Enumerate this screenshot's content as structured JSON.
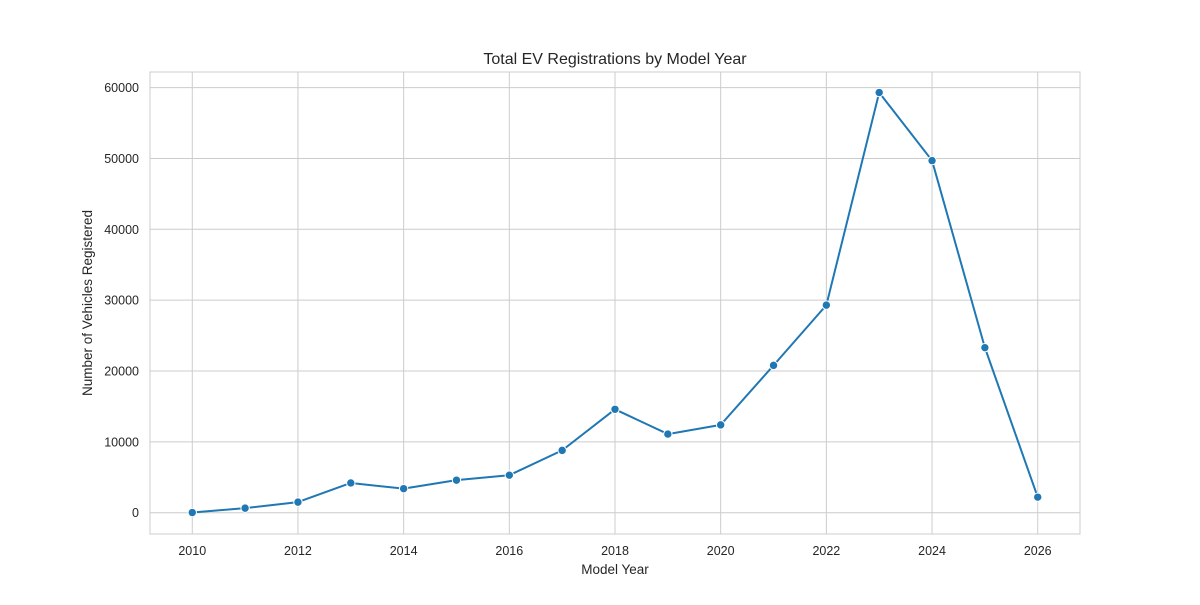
{
  "chart_data": {
    "type": "line",
    "title": "Total EV Registrations by Model Year",
    "xlabel": "Model Year",
    "ylabel": "Number of Vehicles Registered",
    "x": [
      2010,
      2011,
      2012,
      2013,
      2014,
      2015,
      2016,
      2017,
      2018,
      2019,
      2020,
      2021,
      2022,
      2023,
      2024,
      2025,
      2026
    ],
    "series": [
      {
        "values": [
          30,
          650,
          1500,
          4200,
          3400,
          4600,
          5300,
          8800,
          14600,
          11100,
          12400,
          20800,
          29300,
          59300,
          49700,
          23300,
          2200
        ]
      }
    ],
    "xlim": [
      2009.2,
      2026.8
    ],
    "ylim": [
      -3000,
      62200
    ],
    "xticks": [
      2010,
      2012,
      2014,
      2016,
      2018,
      2020,
      2022,
      2024,
      2026
    ],
    "yticks": [
      0,
      10000,
      20000,
      30000,
      40000,
      50000,
      60000
    ],
    "grid": true,
    "line_color": "#1f77b4",
    "grid_color": "#cccccc",
    "frame_color": "#cccccc"
  }
}
